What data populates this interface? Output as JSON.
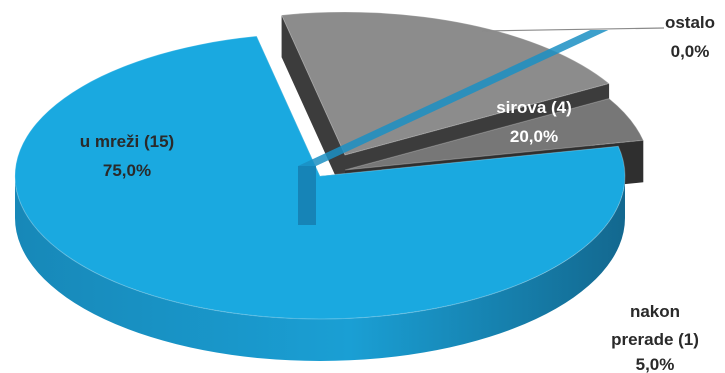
{
  "chart_data": {
    "type": "pie",
    "style": "3d-exploded",
    "title": "",
    "legend": "none",
    "slices": [
      {
        "label": "u mreži (15)",
        "percent_label": "75,0%",
        "value": 15,
        "percent": 75.0,
        "color": "#1aa9e0",
        "label_color": "#2a2a2a"
      },
      {
        "label": "sirova (4)",
        "percent_label": "20,0%",
        "value": 4,
        "percent": 20.0,
        "color": "#8c8c8c",
        "label_color": "#ffffff"
      },
      {
        "label": "nakon prerade (1)",
        "percent_label": "5,0%",
        "value": 1,
        "percent": 5.0,
        "color": "#777777",
        "label_color": "#2a2a2a"
      },
      {
        "label": "ostalo",
        "percent_label": "0,0%",
        "value": 0,
        "percent": 0.0,
        "color": "#1aa9e0",
        "label_color": "#2a2a2a"
      }
    ]
  }
}
